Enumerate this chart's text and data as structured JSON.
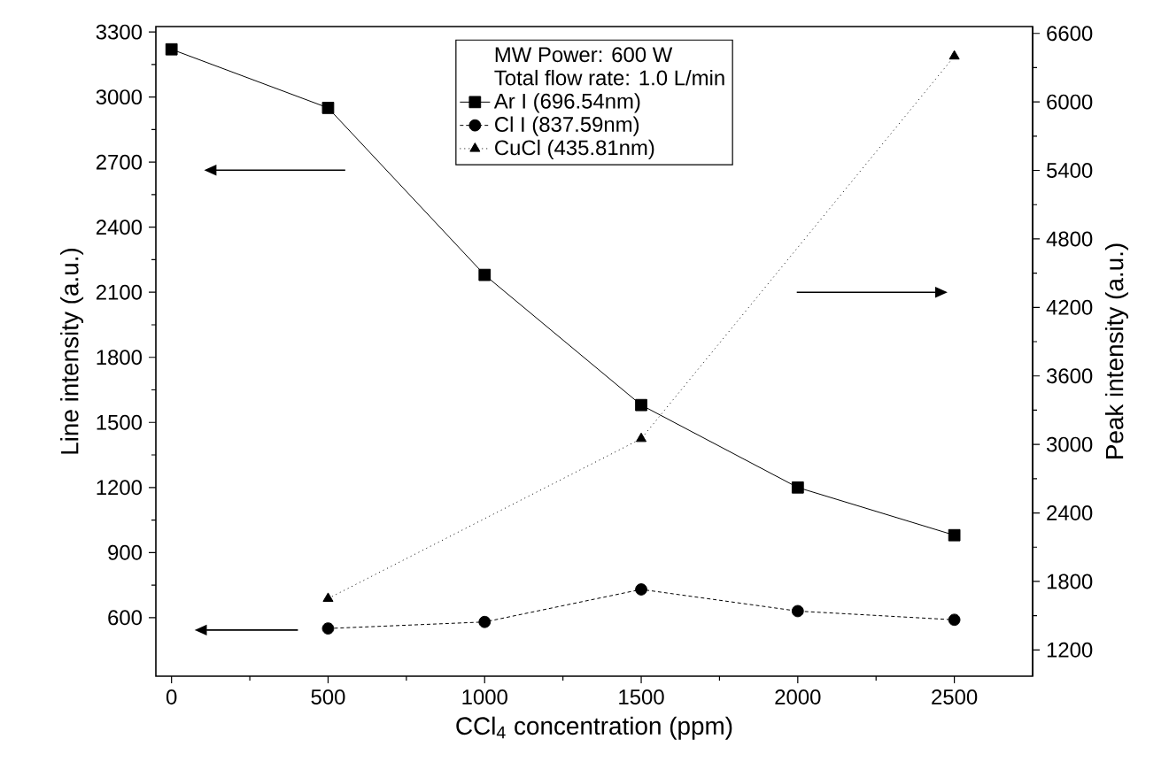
{
  "chart_data": {
    "type": "line",
    "xlabel": "CCl$_{4}$ concentration (ppm)",
    "ylabel": "Line intensity (a.u.)",
    "y2label": "Peak intensity (a.u.)",
    "annotations": [
      "MW Power: 600 W",
      "Total flow rate: 1.0 L/min"
    ],
    "x": [
      0,
      500,
      1000,
      1500,
      2000,
      2500
    ],
    "series": [
      {
        "name": "Ar I (696.54nm)",
        "color": "#000000",
        "marker": "square",
        "line_style": "solid",
        "values": [
          3220,
          2950,
          2180,
          1580,
          1200,
          980
        ]
      },
      {
        "name": "Cl I (837.59nm)",
        "color": "#000000",
        "marker": "circle",
        "line_style": "dashed",
        "x": [
          500,
          1000,
          1500,
          2000,
          2500
        ],
        "values": [
          550,
          580,
          730,
          630,
          590
        ]
      },
      {
        "name": "CuCl (435.81nm)",
        "color": "#000000",
        "marker": "triangle",
        "line_style": "dotted",
        "axis": "y2",
        "x": [
          500,
          1500,
          2500
        ],
        "values": [
          1650,
          3050,
          6400
        ]
      }
    ],
    "xlim": [
      -50,
      2750
    ],
    "xticks": [
      0,
      500,
      1000,
      1500,
      2000,
      2500
    ],
    "ylim": [
      330,
      3325
    ],
    "yticks": [
      600,
      900,
      1200,
      1500,
      1800,
      2100,
      2400,
      2700,
      3000,
      3300
    ],
    "y2lim": [
      970,
      6660
    ],
    "y2ticks": [
      1200,
      1800,
      2400,
      3000,
      3600,
      4200,
      4800,
      5400,
      6000,
      6600
    ],
    "grid": false,
    "legend": "top"
  }
}
